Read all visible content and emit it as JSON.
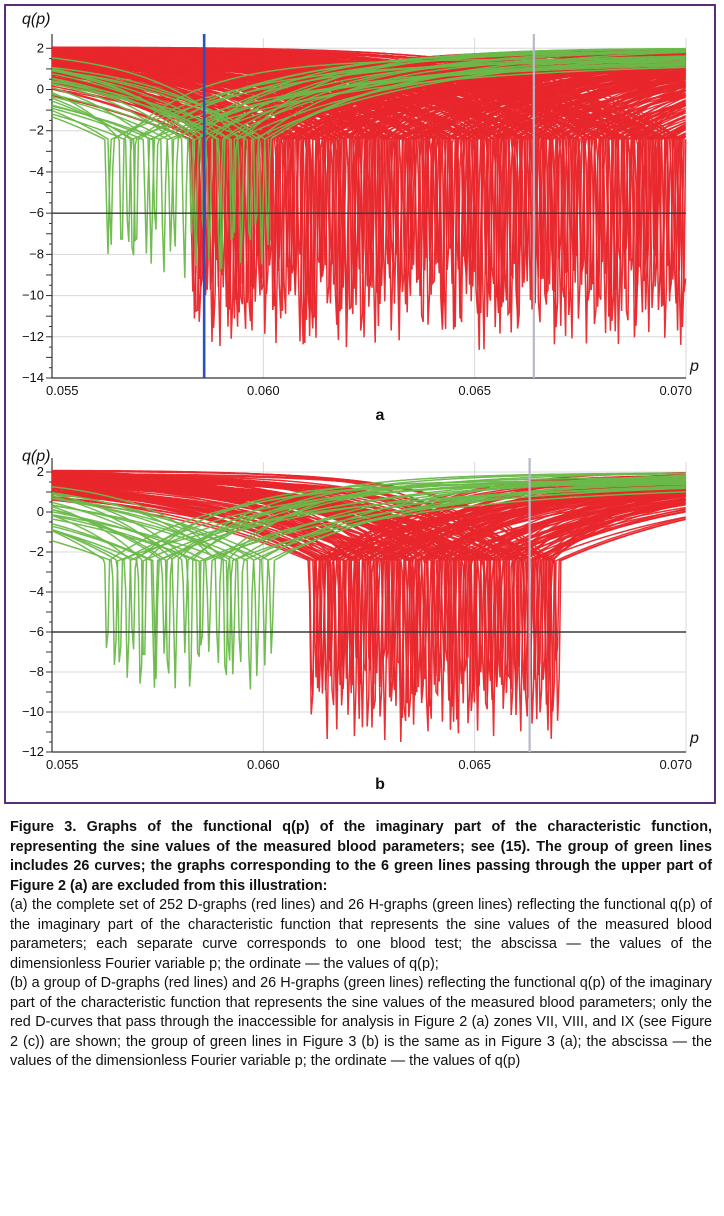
{
  "colors": {
    "red": "#e8262b",
    "green": "#6ab94a",
    "blue_line": "#2a4fc0",
    "gray_line": "#b8b8c8",
    "dark_grid": "#3a3a3a",
    "light_grid": "#d8d8d8",
    "frame": "#5a2d7a"
  },
  "chart_data": [
    {
      "type": "line",
      "panel": "a",
      "ylabel": "q(p)",
      "xlabel": "p",
      "xlim": [
        0.055,
        0.07
      ],
      "ylim": [
        -14,
        2.5
      ],
      "x_ticks": [
        "0.055",
        "0.060",
        "0.065",
        "0.070"
      ],
      "x_tick_values": [
        0.055,
        0.06,
        0.065,
        0.07
      ],
      "y_ticks": [
        "2",
        "0",
        "−2",
        "−4",
        "−6",
        "−8",
        "−10",
        "−12",
        "−14"
      ],
      "y_tick_values": [
        2,
        0,
        -2,
        -4,
        -6,
        -8,
        -10,
        -12,
        -14
      ],
      "reference_hline": -6,
      "vlines": [
        {
          "x": 0.0586,
          "color": "blue"
        },
        {
          "x": 0.0664,
          "color": "gray"
        }
      ],
      "series": [
        {
          "color": "red",
          "count": 252,
          "zero_p_range": [
            0.0583,
            0.07
          ],
          "depth_range": [
            -8.5,
            -12.8
          ]
        },
        {
          "color": "green",
          "count": 26,
          "zero_p_range": [
            0.0562,
            0.0602
          ],
          "depth_range": [
            -7.0,
            -9.3
          ]
        }
      ]
    },
    {
      "type": "line",
      "panel": "b",
      "ylabel": "q(p)",
      "xlabel": "p",
      "xlim": [
        0.055,
        0.07
      ],
      "ylim": [
        -12,
        2.5
      ],
      "x_ticks": [
        "0.055",
        "0.060",
        "0.065",
        "0.070"
      ],
      "x_tick_values": [
        0.055,
        0.06,
        0.065,
        0.07
      ],
      "y_ticks": [
        "2",
        "0",
        "−2",
        "−4",
        "−6",
        "−8",
        "−10",
        "−12"
      ],
      "y_tick_values": [
        2,
        0,
        -2,
        -4,
        -6,
        -8,
        -10,
        -12
      ],
      "reference_hline": -6,
      "vlines": [
        {
          "x": 0.0663,
          "color": "gray"
        }
      ],
      "series": [
        {
          "color": "red",
          "count": 120,
          "zero_p_range": [
            0.0611,
            0.067
          ],
          "depth_range": [
            -8.0,
            -11.6
          ]
        },
        {
          "color": "green",
          "count": 26,
          "zero_p_range": [
            0.0562,
            0.0602
          ],
          "depth_range": [
            -7.0,
            -9.3
          ]
        }
      ]
    }
  ],
  "panel_labels": {
    "a": "a",
    "b": "b"
  },
  "caption": {
    "title": "Figure 3. Graphs of the functional q(p) of the imaginary part of the characteristic function, representing the sine values of the measured blood parameters; see (15). The group of green lines includes 26 curves; the graphs corresponding to the 6 green lines passing through the upper part of Figure 2 (a) are excluded from this illustration:",
    "para_a": "(a) the complete set of 252 D-graphs (red lines) and 26 H-graphs (green lines) reflecting the functional q(p) of the imaginary part of the characteristic function that represents the sine values of the measured blood parameters; each separate curve corresponds to one blood test; the abscissa — the values of the dimensionless Fourier variable p; the ordinate — the values of q(p);",
    "para_b": "(b) a group of D-graphs (red lines) and 26 H-graphs (green lines) reflecting the functional q(p) of the imaginary part of the characteristic function that represents the sine values of the measured blood parameters; only the red D-curves that pass through the inaccessible for analysis in Figure 2 (a) zones VII, VIII, and IX (see Figure 2 (c)) are shown; the group of green lines in Figure 3 (b) is the same as in Figure 3 (a); the abscissa — the values of the dimensionless Fourier variable p; the ordinate — the values of q(p)"
  }
}
